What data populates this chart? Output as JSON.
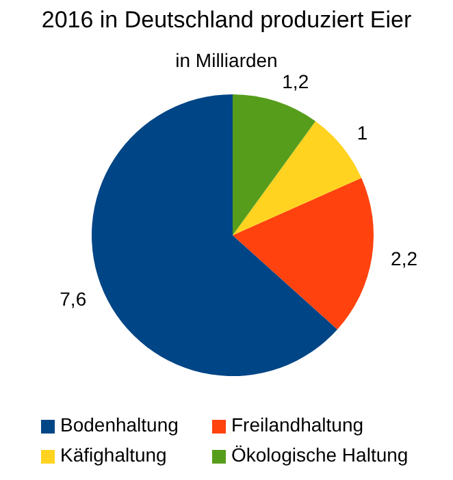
{
  "chart_data": {
    "type": "pie",
    "title": "2016 in Deutschland produziert Eier",
    "subtitle": "in Milliarden",
    "categories": [
      "Bodenhaltung",
      "Freilandhaltung",
      "Käfighaltung",
      "Ökologische Haltung"
    ],
    "values": [
      7.6,
      2.2,
      1,
      1.2
    ],
    "value_labels": [
      "7,6",
      "2,2",
      "1",
      "1,2"
    ],
    "colors": [
      "#004586",
      "#ff420e",
      "#ffd320",
      "#579d1c"
    ],
    "legend": "bottom"
  }
}
